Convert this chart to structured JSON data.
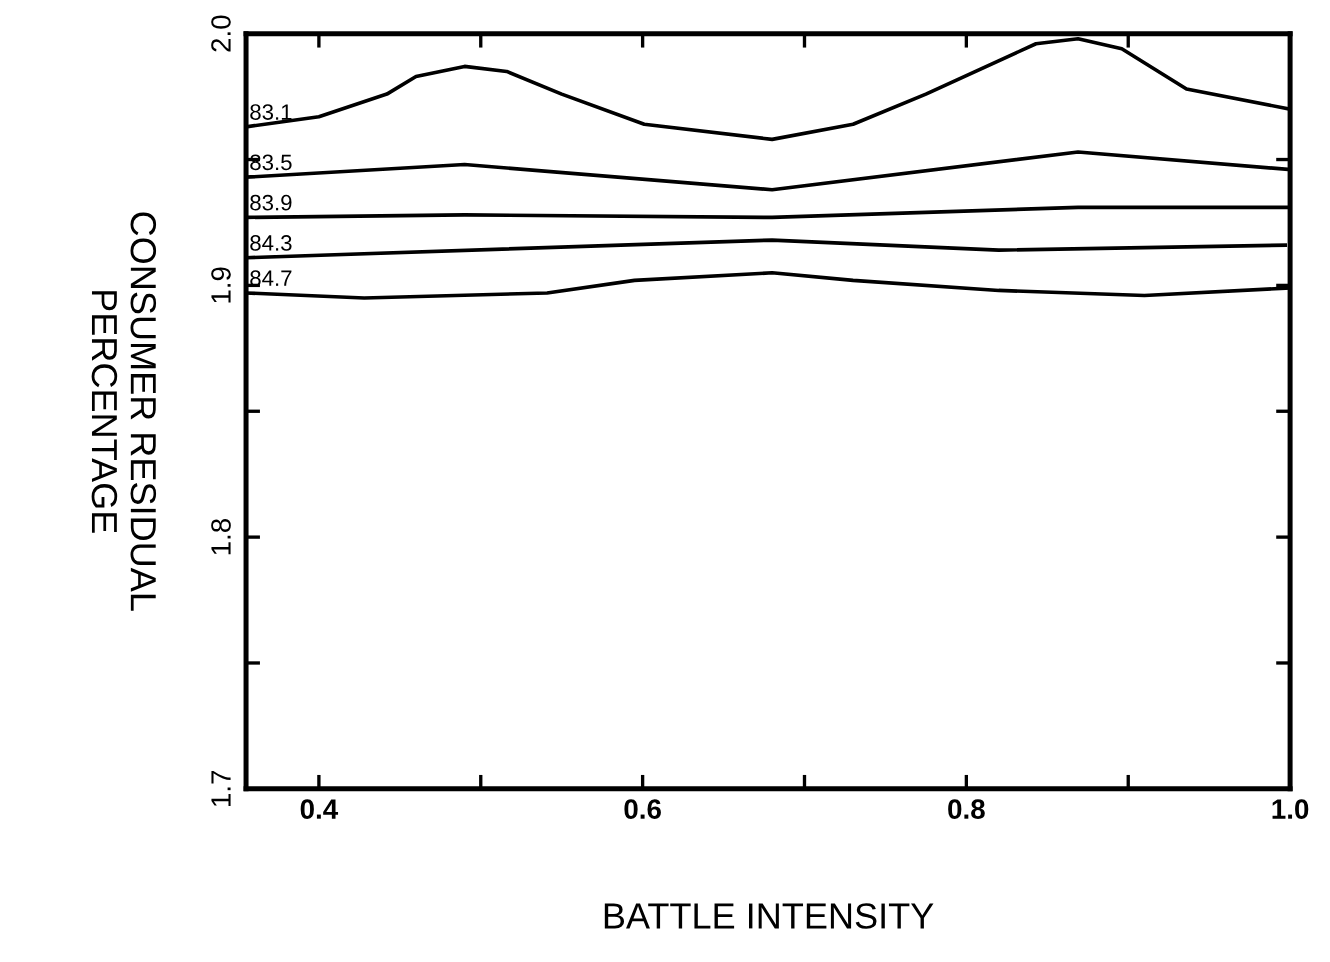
{
  "chart_data": {
    "type": "line",
    "xlabel": "BATTLE INTENSITY",
    "ylabel": "CONSUMER RESIDUAL\nPERCENTAGE",
    "xlim": [
      0.355,
      1.0
    ],
    "ylim": [
      1.7,
      2.0
    ],
    "xticks": [
      0.4,
      {
        "value": 0.5,
        "label": null
      },
      0.6,
      {
        "value": 0.7,
        "label": null
      },
      0.8,
      {
        "value": 0.9,
        "label": null
      },
      "1.0"
    ],
    "yticks": [
      1.7,
      {
        "value": 1.75,
        "label": null
      },
      1.8,
      {
        "value": 1.85,
        "label": null
      },
      1.9,
      {
        "value": 1.95,
        "label": null
      },
      "2.0"
    ],
    "grid": false,
    "legend": false,
    "marker": "none",
    "line_style": "solid",
    "series": [
      {
        "name": "83.1",
        "color": "#000000",
        "x": [
          0.355,
          0.4,
          0.442,
          0.46,
          0.49,
          0.516,
          0.55,
          0.601,
          0.68,
          0.73,
          0.775,
          0.843,
          0.869,
          0.896,
          0.936,
          1.0
        ],
        "values": [
          1.963,
          1.967,
          1.976,
          1.983,
          1.987,
          1.985,
          1.976,
          1.964,
          1.958,
          1.964,
          1.976,
          1.996,
          1.998,
          1.994,
          1.978,
          1.97
        ]
      },
      {
        "name": "83.5",
        "color": "#000000",
        "x": [
          0.355,
          0.49,
          0.68,
          0.869,
          1.0
        ],
        "values": [
          1.943,
          1.948,
          1.938,
          1.953,
          1.946
        ]
      },
      {
        "name": "83.9",
        "color": "#000000",
        "x": [
          0.355,
          0.49,
          0.68,
          0.869,
          1.0
        ],
        "values": [
          1.927,
          1.928,
          1.927,
          1.931,
          1.931
        ]
      },
      {
        "name": "84.3",
        "color": "#000000",
        "x": [
          0.355,
          0.68,
          0.82,
          0.997
        ],
        "values": [
          1.911,
          1.918,
          1.914,
          1.916
        ]
      },
      {
        "name": "84.7",
        "color": "#000000",
        "x": [
          0.355,
          0.428,
          0.541,
          0.595,
          0.68,
          0.73,
          0.82,
          0.91,
          1.0
        ],
        "values": [
          1.897,
          1.895,
          1.897,
          1.902,
          1.905,
          1.902,
          1.898,
          1.896,
          1.899
        ]
      }
    ]
  }
}
